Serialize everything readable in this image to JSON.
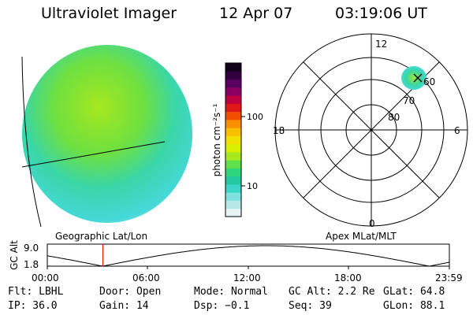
{
  "header": {
    "title": "Ultraviolet Imager",
    "date": "12 Apr 07",
    "time": "03:19:06 UT"
  },
  "colorbar": {
    "label": "photon cm⁻²s⁻¹",
    "ticks": [
      {
        "label": "100",
        "value": 100
      },
      {
        "label": "10",
        "value": 10
      }
    ],
    "colors": [
      "#e8f4f4",
      "#b8e8e8",
      "#7fe0e0",
      "#3ad6c8",
      "#22c9a0",
      "#2ed67a",
      "#5ee04a",
      "#a6e81e",
      "#d8f000",
      "#f0e000",
      "#f8c000",
      "#f89000",
      "#f05000",
      "#e01818",
      "#c00040",
      "#8c0064",
      "#5a0060",
      "#300040",
      "#100018"
    ]
  },
  "polar_grid": {
    "labels": [
      {
        "text": "12",
        "pos": "top"
      },
      {
        "text": "18",
        "pos": "left"
      },
      {
        "text": "6",
        "pos": "right"
      },
      {
        "text": "0",
        "pos": "bottom"
      },
      {
        "text": "80",
        "pos": "ring-80"
      },
      {
        "text": "70",
        "pos": "ring-70"
      },
      {
        "text": "60",
        "pos": "ring-60"
      }
    ]
  },
  "panel_labels": {
    "left": "Geographic Lat/Lon",
    "right": "Apex MLat/MLT"
  },
  "altitude_plot": {
    "ylabel": "GC Alt",
    "y_ticks": [
      "9.0",
      "1.8"
    ],
    "x_ticks": [
      "00:00",
      "06:00",
      "12:00",
      "18:00",
      "23:59"
    ],
    "current_time_marker_hour": 3.32,
    "marker_color": "#e00000"
  },
  "info": {
    "row1": {
      "flt": "Flt: LBHL",
      "door": "Door: Open",
      "mode": "Mode: Normal",
      "gcalt": "GC Alt: 2.2 Re",
      "glat": "GLat: 64.8"
    },
    "row2": {
      "ip": "IP: 36.0",
      "gain": "Gain: 14",
      "dsp": "Dsp:  −0.1",
      "seq": "Seq: 39",
      "glon": "GLon: 88.1"
    }
  }
}
